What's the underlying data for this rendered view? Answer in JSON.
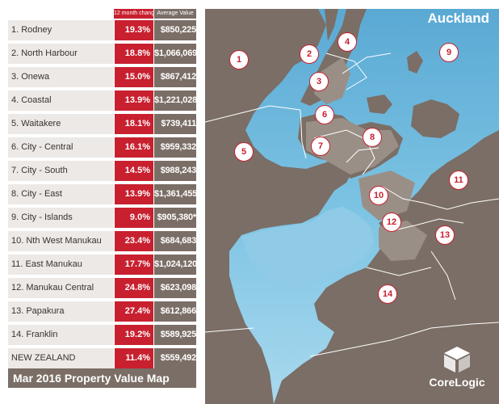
{
  "table": {
    "header_change": "12 month change",
    "header_value": "Average Value",
    "rows": [
      {
        "name": "1. Rodney",
        "change": "19.3%",
        "value": "$850,225"
      },
      {
        "name": "2. North Harbour",
        "change": "18.8%",
        "value": "$1,066,069"
      },
      {
        "name": "3. Onewa",
        "change": "15.0%",
        "value": "$867,412"
      },
      {
        "name": "4. Coastal",
        "change": "13.9%",
        "value": "$1,221,028"
      },
      {
        "name": "5. Waitakere",
        "change": "18.1%",
        "value": "$739,411"
      },
      {
        "name": "6. City - Central",
        "change": "16.1%",
        "value": "$959,332"
      },
      {
        "name": "7. City - South",
        "change": "14.5%",
        "value": "$988,243"
      },
      {
        "name": "8. City - East",
        "change": "13.9%",
        "value": "$1,361,455"
      },
      {
        "name": "9. City - Islands",
        "change": "9.0%",
        "value": "$905,380*"
      },
      {
        "name": "10. Nth West Manukau",
        "change": "23.4%",
        "value": "$684,683"
      },
      {
        "name": "11. East Manukau",
        "change": "17.7%",
        "value": "$1,024,120"
      },
      {
        "name": "12. Manukau Central",
        "change": "24.8%",
        "value": "$623,098"
      },
      {
        "name": "13. Papakura",
        "change": "27.4%",
        "value": "$612,866"
      },
      {
        "name": "14. Franklin",
        "change": "19.2%",
        "value": "$589,925"
      },
      {
        "name": "NEW ZEALAND",
        "change": "11.4%",
        "value": "$559,492"
      }
    ]
  },
  "footer_title": "Mar 2016 Property Value Map",
  "map": {
    "region_name": "Auckland",
    "markers": [
      "1",
      "2",
      "3",
      "4",
      "5",
      "6",
      "7",
      "8",
      "9",
      "10",
      "11",
      "12",
      "13",
      "14"
    ]
  },
  "logo": {
    "brand": "CoreLogic",
    "icon": "cube-logo-icon"
  },
  "colors": {
    "accent_red": "#c8202f",
    "value_grey": "#7a6e66",
    "land": "#7a6e66",
    "urban": "#9a8f87",
    "sea": "#6ab8dc",
    "name_cell": "#ede9e6"
  }
}
